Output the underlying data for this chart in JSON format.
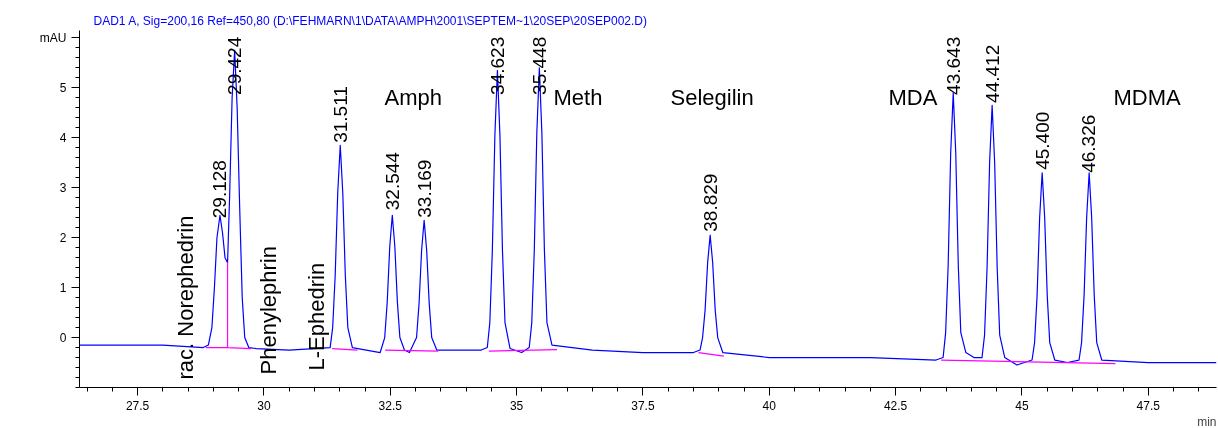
{
  "chart_data": {
    "type": "line",
    "title": "DAD1 A, Sig=200,16 Ref=450,80 (D:\\FEHMARN\\1\\DATA\\AMPH\\2001\\SEPTEM~1\\20SEP\\20SEP002.D)",
    "xlabel": "min",
    "xlim": [
      26.35,
      48.85
    ],
    "ylim": [
      -1,
      6.15
    ],
    "xticks": [
      27.5,
      30,
      32.5,
      35,
      37.5,
      40,
      42.5,
      45,
      47.5
    ],
    "yticks": [
      0,
      1,
      2,
      3,
      4,
      5,
      {
        "value": 6,
        "label": "mAU"
      }
    ],
    "grid": false,
    "marker": "none",
    "line_style": "solid",
    "series": [
      {
        "color": "#0000ff",
        "x": [
          26.35,
          27,
          28,
          28.8,
          28.9,
          28.97,
          29.02,
          29.07,
          29.13,
          29.18,
          29.23,
          29.28,
          29.32,
          29.37,
          29.42,
          29.47,
          29.52,
          29.57,
          29.62,
          29.7,
          29.85,
          30.5,
          31.31,
          31.36,
          31.41,
          31.46,
          31.51,
          31.56,
          31.61,
          31.66,
          31.75,
          32.3,
          32.39,
          32.44,
          32.49,
          32.54,
          32.59,
          32.64,
          32.69,
          32.78,
          32.88,
          33.02,
          33.07,
          33.12,
          33.17,
          33.22,
          33.27,
          33.32,
          33.42,
          34.3,
          34.42,
          34.47,
          34.52,
          34.57,
          34.62,
          34.67,
          34.72,
          34.77,
          34.87,
          35.1,
          35.25,
          35.3,
          35.35,
          35.4,
          35.45,
          35.5,
          35.55,
          35.6,
          35.7,
          36.5,
          37.5,
          38.5,
          38.63,
          38.68,
          38.73,
          38.78,
          38.83,
          38.88,
          38.93,
          38.98,
          39.08,
          40,
          41,
          42,
          43.3,
          43.44,
          43.49,
          43.54,
          43.59,
          43.64,
          43.69,
          43.74,
          43.79,
          43.89,
          44.05,
          44.21,
          44.26,
          44.31,
          44.36,
          44.41,
          44.46,
          44.51,
          44.56,
          44.66,
          44.9,
          45.2,
          45.25,
          45.3,
          45.35,
          45.4,
          45.45,
          45.5,
          45.55,
          45.65,
          45.9,
          46.13,
          46.18,
          46.23,
          46.28,
          46.33,
          46.38,
          46.43,
          46.48,
          46.58,
          47.5,
          48.5,
          48.85
        ],
        "values": [
          -0.15,
          -0.15,
          -0.15,
          -0.2,
          -0.15,
          0.2,
          1.0,
          2.0,
          2.45,
          2.1,
          1.6,
          1.5,
          2.8,
          4.8,
          5.75,
          4.6,
          2.6,
          0.8,
          0.0,
          -0.2,
          -0.22,
          -0.25,
          -0.2,
          0.2,
          1.25,
          2.9,
          3.85,
          2.9,
          1.25,
          0.2,
          -0.2,
          -0.3,
          0.0,
          0.72,
          1.83,
          2.45,
          1.83,
          0.72,
          0.0,
          -0.25,
          -0.3,
          0.0,
          0.69,
          1.75,
          2.35,
          1.75,
          0.69,
          0.0,
          -0.25,
          -0.25,
          -0.2,
          0.3,
          1.75,
          4.05,
          5.35,
          4.05,
          1.75,
          0.3,
          -0.22,
          -0.3,
          -0.2,
          0.3,
          1.75,
          4.1,
          5.4,
          4.1,
          1.75,
          0.3,
          -0.15,
          -0.25,
          -0.3,
          -0.3,
          -0.25,
          0.0,
          0.55,
          1.5,
          2.05,
          1.5,
          0.55,
          0.0,
          -0.3,
          -0.4,
          -0.4,
          -0.4,
          -0.45,
          -0.4,
          0.1,
          1.45,
          3.7,
          4.9,
          3.7,
          1.45,
          0.1,
          -0.3,
          -0.4,
          -0.4,
          0.05,
          1.4,
          3.5,
          4.65,
          3.5,
          1.4,
          0.05,
          -0.4,
          -0.55,
          -0.45,
          -0.1,
          0.85,
          2.4,
          3.3,
          2.4,
          0.85,
          -0.1,
          -0.45,
          -0.5,
          -0.45,
          -0.1,
          0.85,
          2.4,
          3.3,
          2.4,
          0.85,
          -0.1,
          -0.45,
          -0.5,
          -0.5,
          -0.5
        ]
      },
      {
        "color": "#ff00ff",
        "x": [
          28.85,
          29.28,
          29.28,
          29.28,
          29.75,
          30.5,
          31.35,
          31.85,
          32.1,
          32.4,
          33.45,
          34.0,
          34.45,
          35.8,
          37.0,
          38.6,
          39.1,
          41.0,
          43.4,
          46.85
        ],
        "values": [
          -0.2,
          -0.2,
          1.5,
          -0.2,
          -0.22,
          null,
          -0.22,
          -0.25,
          null,
          -0.25,
          -0.27,
          null,
          -0.27,
          -0.24,
          null,
          -0.3,
          -0.37,
          null,
          -0.45,
          -0.52
        ]
      }
    ],
    "annotations": [
      {
        "text": "29.128",
        "x": 29.128,
        "y": 2.39
      },
      {
        "text": "29.424",
        "x": 29.424,
        "y": 4.86
      },
      {
        "text": "31.511",
        "x": 31.511,
        "y": 3.9
      },
      {
        "text": "32.544",
        "x": 32.544,
        "y": 2.55
      },
      {
        "text": "33.169",
        "x": 33.169,
        "y": 2.4
      },
      {
        "text": "34.623",
        "x": 34.623,
        "y": 4.86
      },
      {
        "text": "35.448",
        "x": 35.448,
        "y": 4.86
      },
      {
        "text": "38.829",
        "x": 38.829,
        "y": 2.12
      },
      {
        "text": "43.643",
        "x": 43.643,
        "y": 4.86
      },
      {
        "text": "44.412",
        "x": 44.412,
        "y": 4.7
      },
      {
        "text": "45.400",
        "x": 45.4,
        "y": 3.36
      },
      {
        "text": "46.326",
        "x": 46.326,
        "y": 3.3
      },
      "rac. Norephedrin",
      "Phenylephrin",
      "L-Ephedrin",
      "Amph",
      "Meth",
      "Selegilin",
      "MDA",
      "MDMA"
    ]
  }
}
